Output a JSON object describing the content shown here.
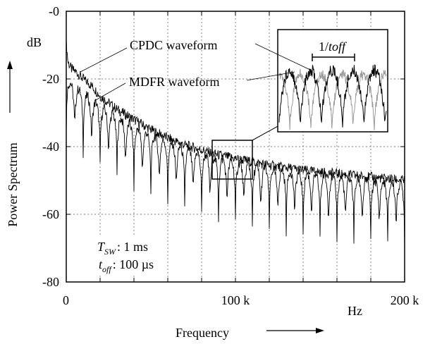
{
  "chart_data": {
    "type": "line",
    "title": "",
    "xlabel": "Frequency",
    "ylabel": "Power Spectrum",
    "x_unit": "Hz",
    "y_unit": "dB",
    "xlim": [
      0,
      200000
    ],
    "ylim": [
      -80,
      0
    ],
    "x_ticks": [
      0,
      100000,
      200000
    ],
    "x_tick_labels": [
      "0",
      "100 k",
      "200 k"
    ],
    "y_ticks": [
      0,
      -20,
      -40,
      -60,
      -80
    ],
    "y_tick_labels": [
      "-0",
      "-20",
      "-40",
      "-60",
      "-80"
    ],
    "grid": true,
    "series": [
      {
        "name": "CPDC waveform",
        "color": "#000000",
        "x": [
          0,
          1000,
          3000,
          6000,
          10000,
          15000,
          20000,
          30000,
          40000,
          50000,
          60000,
          70000,
          80000,
          90000,
          100000,
          110000,
          120000,
          130000,
          140000,
          150000,
          160000,
          170000,
          180000,
          190000,
          200000
        ],
        "y": [
          -9,
          -15,
          -17,
          -18,
          -20,
          -22,
          -25,
          -29,
          -32,
          -35,
          -37.5,
          -39.5,
          -41,
          -42.5,
          -43.5,
          -44.5,
          -45.5,
          -46.2,
          -47,
          -47.6,
          -48,
          -48.5,
          -49,
          -49.5,
          -50
        ]
      },
      {
        "name": "MDFR waveform",
        "color": "#000000",
        "x": [
          0,
          2000,
          5000,
          10000,
          15000,
          20000,
          30000,
          40000,
          50000,
          60000,
          70000,
          80000,
          90000,
          100000,
          110000,
          120000,
          130000,
          140000,
          150000,
          160000,
          170000,
          180000,
          190000,
          200000
        ],
        "y": [
          -18,
          -21,
          -22,
          -24,
          -26,
          -28,
          -31,
          -34,
          -36.5,
          -38.5,
          -40.5,
          -42,
          -43.5,
          -44.5,
          -45.5,
          -46.5,
          -47.2,
          -47.8,
          -48.4,
          -49,
          -49.5,
          -50,
          -50.5,
          -51
        ],
        "notch_spacing_hz": 5000,
        "notch_depth_db": -18
      }
    ],
    "annotations": {
      "params_line1_sym": "T",
      "params_line1_sub": "SW",
      "params_line1_val": ": 1 ms",
      "params_line2_sym": "t",
      "params_line2_sub": "off",
      "params_line2_val": ": 100 µs",
      "inset_label_prefix": "1/",
      "inset_label_italic": "toff"
    },
    "zoom_region": {
      "x": [
        85000,
        110000
      ],
      "y": [
        -40,
        -50
      ]
    }
  }
}
